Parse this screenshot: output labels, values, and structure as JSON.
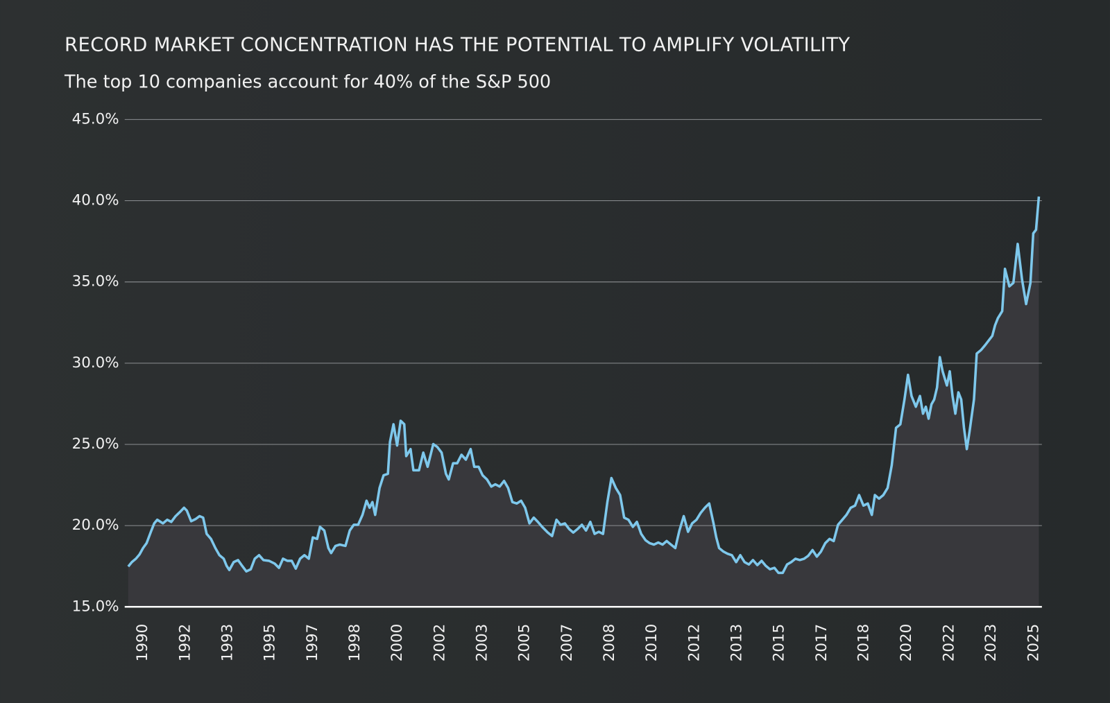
{
  "chart_data": {
    "type": "area-line",
    "title": "RECORD MARKET CONCENTRATION HAS THE POTENTIAL TO AMPLIFY VOLATILITY",
    "subtitle": "The top 10 companies account for 40% of the S&P 500",
    "color": "#7ec8ec",
    "area_color": "#38383c",
    "grid": true,
    "xlim": [
      1989.28,
      2025.31
    ],
    "xticks": [
      1990,
      {
        "value": 1991.67,
        "label": "1992"
      },
      {
        "value": 1993.33,
        "label": "1993"
      },
      1995,
      {
        "value": 1996.67,
        "label": "1997"
      },
      {
        "value": 1998.33,
        "label": "1998"
      },
      2000,
      {
        "value": 2001.67,
        "label": "2002"
      },
      {
        "value": 2003.33,
        "label": "2003"
      },
      2005,
      {
        "value": 2006.67,
        "label": "2007"
      },
      {
        "value": 2008.33,
        "label": "2008"
      },
      2010,
      {
        "value": 2011.67,
        "label": "2012"
      },
      {
        "value": 2013.33,
        "label": "2013"
      },
      2015,
      {
        "value": 2016.67,
        "label": "2017"
      },
      {
        "value": 2018.33,
        "label": "2018"
      },
      2020,
      {
        "value": 2021.67,
        "label": "2022"
      },
      {
        "value": 2023.33,
        "label": "2023"
      },
      2025
    ],
    "ylim": [
      15,
      45
    ],
    "yticks": [
      {
        "value": 15,
        "label": "15.0%"
      },
      {
        "value": 20,
        "label": "20.0%"
      },
      {
        "value": 25,
        "label": "25.0%"
      },
      {
        "value": 30,
        "label": "30.0%"
      },
      {
        "value": 35,
        "label": "35.0%"
      },
      {
        "value": 40,
        "label": "40.0%"
      },
      {
        "value": 45,
        "label": "45.0%"
      }
    ],
    "x": [
      1989.42,
      1989.56,
      1989.72,
      1989.86,
      1990.0,
      1990.14,
      1990.31,
      1990.44,
      1990.56,
      1990.78,
      1990.95,
      1991.11,
      1991.28,
      1991.45,
      1991.61,
      1991.72,
      1991.89,
      1992.06,
      1992.22,
      1992.36,
      1992.5,
      1992.67,
      1992.84,
      1993.0,
      1993.17,
      1993.28,
      1993.39,
      1993.56,
      1993.73,
      1993.89,
      1994.06,
      1994.23,
      1994.39,
      1994.56,
      1994.73,
      1994.95,
      1995.17,
      1995.34,
      1995.5,
      1995.67,
      1995.84,
      1996.0,
      1996.17,
      1996.34,
      1996.51,
      1996.67,
      1996.84,
      1996.95,
      1997.12,
      1997.28,
      1997.39,
      1997.56,
      1997.73,
      1997.95,
      1998.12,
      1998.28,
      1998.45,
      1998.62,
      1998.78,
      1998.9,
      1999.01,
      1999.12,
      1999.29,
      1999.45,
      1999.62,
      1999.7,
      1999.84,
      1999.98,
      2000.12,
      2000.26,
      2000.34,
      2000.51,
      2000.62,
      2000.84,
      2001.01,
      2001.18,
      2001.4,
      2001.56,
      2001.73,
      2001.9,
      2002.01,
      2002.18,
      2002.34,
      2002.51,
      2002.68,
      2002.87,
      2003.01,
      2003.18,
      2003.34,
      2003.51,
      2003.68,
      2003.84,
      2004.01,
      2004.18,
      2004.34,
      2004.51,
      2004.68,
      2004.85,
      2005.01,
      2005.18,
      2005.35,
      2005.51,
      2005.68,
      2005.9,
      2006.07,
      2006.24,
      2006.4,
      2006.57,
      2006.74,
      2006.9,
      2007.07,
      2007.24,
      2007.4,
      2007.57,
      2007.74,
      2007.9,
      2008.07,
      2008.24,
      2008.4,
      2008.57,
      2008.74,
      2008.9,
      2009.07,
      2009.24,
      2009.4,
      2009.57,
      2009.74,
      2009.9,
      2010.07,
      2010.24,
      2010.41,
      2010.57,
      2010.74,
      2010.91,
      2011.07,
      2011.24,
      2011.41,
      2011.57,
      2011.74,
      2011.91,
      2012.07,
      2012.24,
      2012.41,
      2012.52,
      2012.63,
      2012.8,
      2012.96,
      2013.13,
      2013.3,
      2013.46,
      2013.63,
      2013.8,
      2013.96,
      2014.13,
      2014.3,
      2014.46,
      2014.63,
      2014.8,
      2014.96,
      2015.13,
      2015.3,
      2015.46,
      2015.63,
      2015.8,
      2015.97,
      2016.13,
      2016.3,
      2016.47,
      2016.63,
      2016.8,
      2016.97,
      2017.13,
      2017.3,
      2017.47,
      2017.63,
      2017.8,
      2017.97,
      2018.13,
      2018.3,
      2018.47,
      2018.63,
      2018.75,
      2018.91,
      2019.08,
      2019.25,
      2019.41,
      2019.58,
      2019.75,
      2019.91,
      2020.05,
      2020.19,
      2020.36,
      2020.52,
      2020.64,
      2020.75,
      2020.86,
      2020.97,
      2021.08,
      2021.19,
      2021.3,
      2021.41,
      2021.58,
      2021.69,
      2021.8,
      2021.91,
      2022.03,
      2022.14,
      2022.25,
      2022.36,
      2022.47,
      2022.64,
      2022.75,
      2022.92,
      2023.08,
      2023.25,
      2023.36,
      2023.47,
      2023.58,
      2023.75,
      2023.86,
      2024.03,
      2024.19,
      2024.36,
      2024.53,
      2024.69,
      2024.86,
      2024.97,
      2025.08,
      2025.19
    ],
    "values": [
      17.48,
      17.75,
      17.96,
      18.22,
      18.62,
      18.92,
      19.62,
      20.14,
      20.36,
      20.14,
      20.36,
      20.23,
      20.58,
      20.84,
      21.1,
      20.92,
      20.27,
      20.4,
      20.58,
      20.49,
      19.49,
      19.18,
      18.62,
      18.18,
      17.96,
      17.53,
      17.27,
      17.75,
      17.88,
      17.53,
      17.18,
      17.31,
      17.96,
      18.18,
      17.88,
      17.83,
      17.66,
      17.4,
      17.96,
      17.83,
      17.83,
      17.35,
      17.96,
      18.18,
      17.96,
      19.27,
      19.18,
      19.92,
      19.7,
      18.62,
      18.31,
      18.75,
      18.83,
      18.75,
      19.7,
      20.05,
      20.05,
      20.66,
      21.53,
      21.1,
      21.45,
      20.66,
      22.32,
      23.1,
      23.19,
      25.15,
      26.24,
      24.93,
      26.45,
      26.24,
      24.28,
      24.71,
      23.41,
      23.41,
      24.49,
      23.62,
      25.02,
      24.84,
      24.49,
      23.19,
      22.84,
      23.84,
      23.84,
      24.36,
      24.06,
      24.71,
      23.62,
      23.62,
      23.1,
      22.84,
      22.4,
      22.54,
      22.4,
      22.75,
      22.32,
      21.45,
      21.36,
      21.53,
      21.1,
      20.14,
      20.49,
      20.23,
      19.92,
      19.57,
      19.36,
      20.36,
      20.05,
      20.14,
      19.79,
      19.57,
      19.79,
      20.05,
      19.7,
      20.23,
      19.49,
      19.62,
      19.49,
      21.45,
      22.93,
      22.32,
      21.88,
      20.49,
      20.36,
      19.92,
      20.23,
      19.49,
      19.1,
      18.92,
      18.83,
      18.96,
      18.83,
      19.05,
      18.83,
      18.62,
      19.7,
      20.58,
      19.62,
      20.14,
      20.36,
      20.79,
      21.1,
      21.36,
      20.14,
      19.27,
      18.62,
      18.4,
      18.27,
      18.18,
      17.75,
      18.18,
      17.75,
      17.61,
      17.88,
      17.57,
      17.83,
      17.53,
      17.31,
      17.4,
      17.09,
      17.09,
      17.61,
      17.75,
      17.96,
      17.88,
      17.96,
      18.14,
      18.49,
      18.09,
      18.4,
      18.92,
      19.18,
      19.05,
      20.05,
      20.36,
      20.66,
      21.1,
      21.23,
      21.88,
      21.23,
      21.36,
      20.66,
      21.88,
      21.66,
      21.88,
      22.32,
      23.71,
      26.02,
      26.24,
      27.76,
      29.28,
      27.98,
      27.32,
      27.98,
      26.89,
      27.32,
      26.58,
      27.46,
      27.76,
      28.5,
      30.37,
      29.5,
      28.63,
      29.5,
      27.98,
      26.89,
      28.2,
      27.76,
      26.02,
      24.71,
      25.8,
      27.76,
      30.59,
      30.81,
      31.11,
      31.46,
      31.68,
      32.33,
      32.77,
      33.2,
      35.81,
      34.73,
      34.94,
      37.34,
      35.16,
      33.64,
      34.94,
      37.99,
      38.21,
      40.26
    ]
  }
}
